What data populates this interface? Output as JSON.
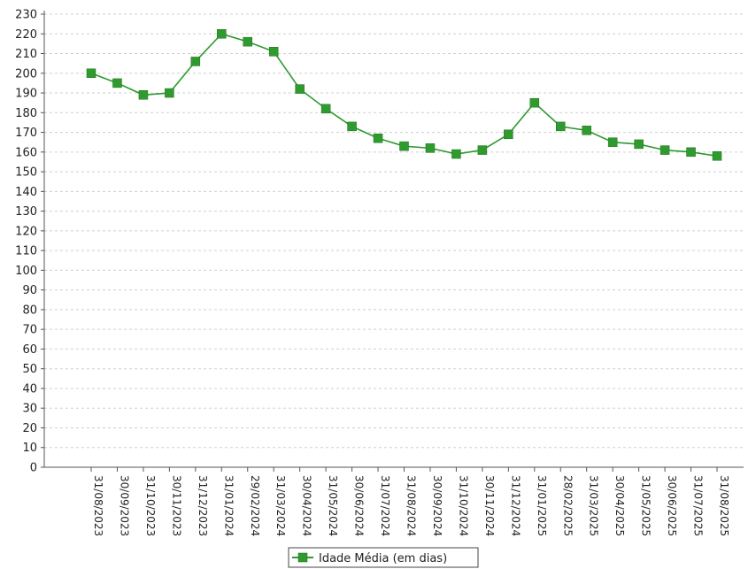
{
  "chart_data": {
    "type": "line",
    "title": "",
    "xlabel": "",
    "ylabel": "",
    "ylim": [
      0,
      230
    ],
    "ytick_step": 10,
    "grid": true,
    "legend_position": "bottom-center",
    "colors": {
      "series": "#2e9a2e",
      "marker": "#2f9b2f",
      "grid": "#cfcfcf",
      "axis": "#555555"
    },
    "categories": [
      "31/08/2023",
      "30/09/2023",
      "31/10/2023",
      "30/11/2023",
      "31/12/2023",
      "31/01/2024",
      "29/02/2024",
      "31/03/2024",
      "30/04/2024",
      "31/05/2024",
      "30/06/2024",
      "31/07/2024",
      "31/08/2024",
      "30/09/2024",
      "31/10/2024",
      "30/11/2024",
      "31/12/2024",
      "31/01/2025",
      "28/02/2025",
      "31/03/2025",
      "30/04/2025",
      "31/05/2025",
      "30/06/2025",
      "31/07/2025",
      "31/08/2025"
    ],
    "series": [
      {
        "name": "Idade Média (em dias)",
        "values": [
          200,
          195,
          189,
          190,
          206,
          220,
          216,
          211,
          192,
          182,
          173,
          167,
          163,
          162,
          159,
          161,
          169,
          185,
          173,
          171,
          165,
          164,
          161,
          160,
          158
        ]
      }
    ]
  }
}
